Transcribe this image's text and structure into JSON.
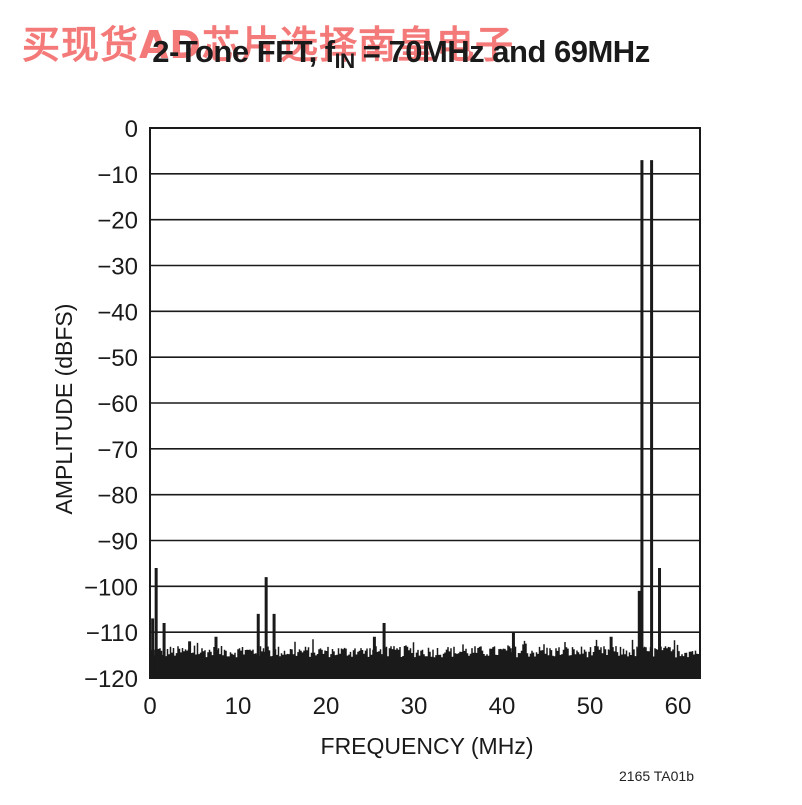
{
  "watermark": "买现货AD芯片选择南皇电子",
  "title_parts": {
    "pre": "2-Tone FFT, f",
    "sub": "IN",
    "post": " = 70MHz and 69MHz"
  },
  "figure_ref": "2165 TA01b",
  "chart_data": {
    "type": "line",
    "title": "2-Tone FFT, fIN = 70MHz and 69MHz",
    "xlabel": "FREQUENCY (MHz)",
    "ylabel": "AMPLITUDE (dBFS)",
    "xlim": [
      0,
      62.5
    ],
    "ylim": [
      -120,
      0
    ],
    "xticks": [
      0,
      10,
      20,
      30,
      40,
      50,
      60
    ],
    "yticks": [
      0,
      -10,
      -20,
      -30,
      -40,
      -50,
      -60,
      -70,
      -80,
      -90,
      -100,
      -110,
      -120
    ],
    "grid": "horizontal",
    "line_color": "#1a1a1a",
    "noise_floor": {
      "from_dB": -115.5,
      "to_dB": -113
    },
    "spurs": [
      {
        "x": 0.3,
        "y": -107
      },
      {
        "x": 0.7,
        "y": -96
      },
      {
        "x": 1.6,
        "y": -108
      },
      {
        "x": 4.5,
        "y": -112
      },
      {
        "x": 7.5,
        "y": -111
      },
      {
        "x": 12.3,
        "y": -106
      },
      {
        "x": 13.2,
        "y": -98
      },
      {
        "x": 14.1,
        "y": -106
      },
      {
        "x": 25.5,
        "y": -111
      },
      {
        "x": 26.6,
        "y": -108
      },
      {
        "x": 41.3,
        "y": -110
      },
      {
        "x": 52.4,
        "y": -111
      },
      {
        "x": 55.6,
        "y": -101
      },
      {
        "x": 55.9,
        "y": -7
      },
      {
        "x": 57.0,
        "y": -7
      },
      {
        "x": 57.9,
        "y": -96
      }
    ]
  }
}
